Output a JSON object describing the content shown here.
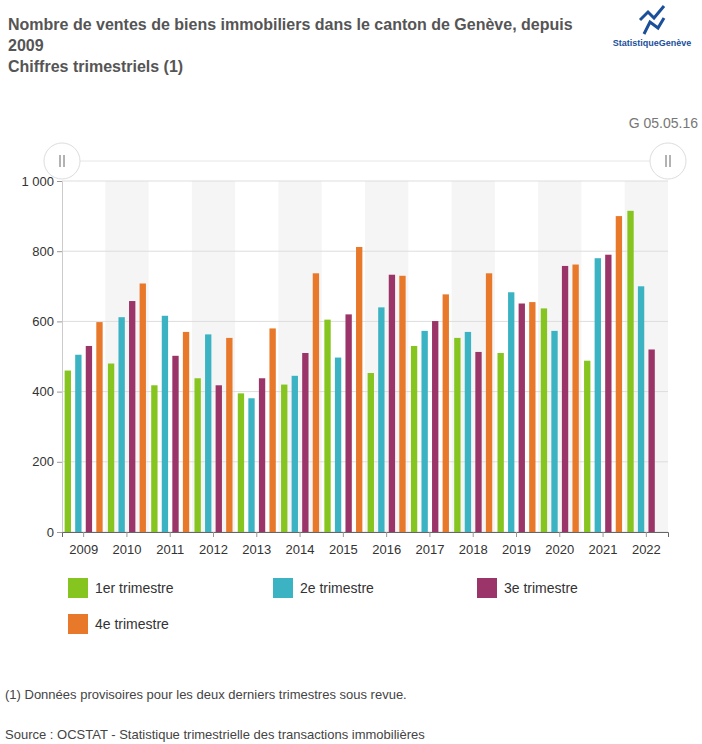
{
  "chart_data": {
    "type": "bar",
    "title": "Nombre de ventes de biens immobiliers dans le canton de Genève, depuis 2009",
    "subtitle": "Chiffres trimestriels (1)",
    "annotations": [
      "StatistiqueGenève",
      "G 05.05.16",
      "(1) Données provisoires pour les deux derniers trimestres sous revue.",
      "Source : OCSTAT - Statistique trimestrielle des transactions immobilières"
    ],
    "categories": [
      "2009",
      "2010",
      "2011",
      "2012",
      "2013",
      "2014",
      "2015",
      "2016",
      "2017",
      "2018",
      "2019",
      "2020",
      "2021",
      "2022"
    ],
    "series": [
      {
        "name": "1er trimestre",
        "color": "#86c41f",
        "values": [
          460,
          480,
          418,
          438,
          395,
          420,
          605,
          453,
          530,
          553,
          510,
          637,
          488,
          915
        ]
      },
      {
        "name": "2e trimestre",
        "color": "#3bb3c3",
        "values": [
          505,
          612,
          616,
          563,
          381,
          445,
          497,
          640,
          573,
          570,
          683,
          573,
          780,
          700
        ]
      },
      {
        "name": "3e trimestre",
        "color": "#9b3468",
        "values": [
          530,
          658,
          502,
          418,
          438,
          510,
          620,
          733,
          601,
          513,
          651,
          758,
          790,
          520
        ]
      },
      {
        "name": "4e trimestre",
        "color": "#e8782a",
        "values": [
          598,
          708,
          570,
          553,
          580,
          737,
          812,
          730,
          677,
          737,
          655,
          762,
          900,
          null
        ]
      }
    ],
    "ylim": [
      0,
      1000
    ],
    "yticks": [
      0,
      200,
      400,
      600,
      800,
      {
        "value": 1000,
        "label": "1 000"
      }
    ],
    "grid": true
  }
}
